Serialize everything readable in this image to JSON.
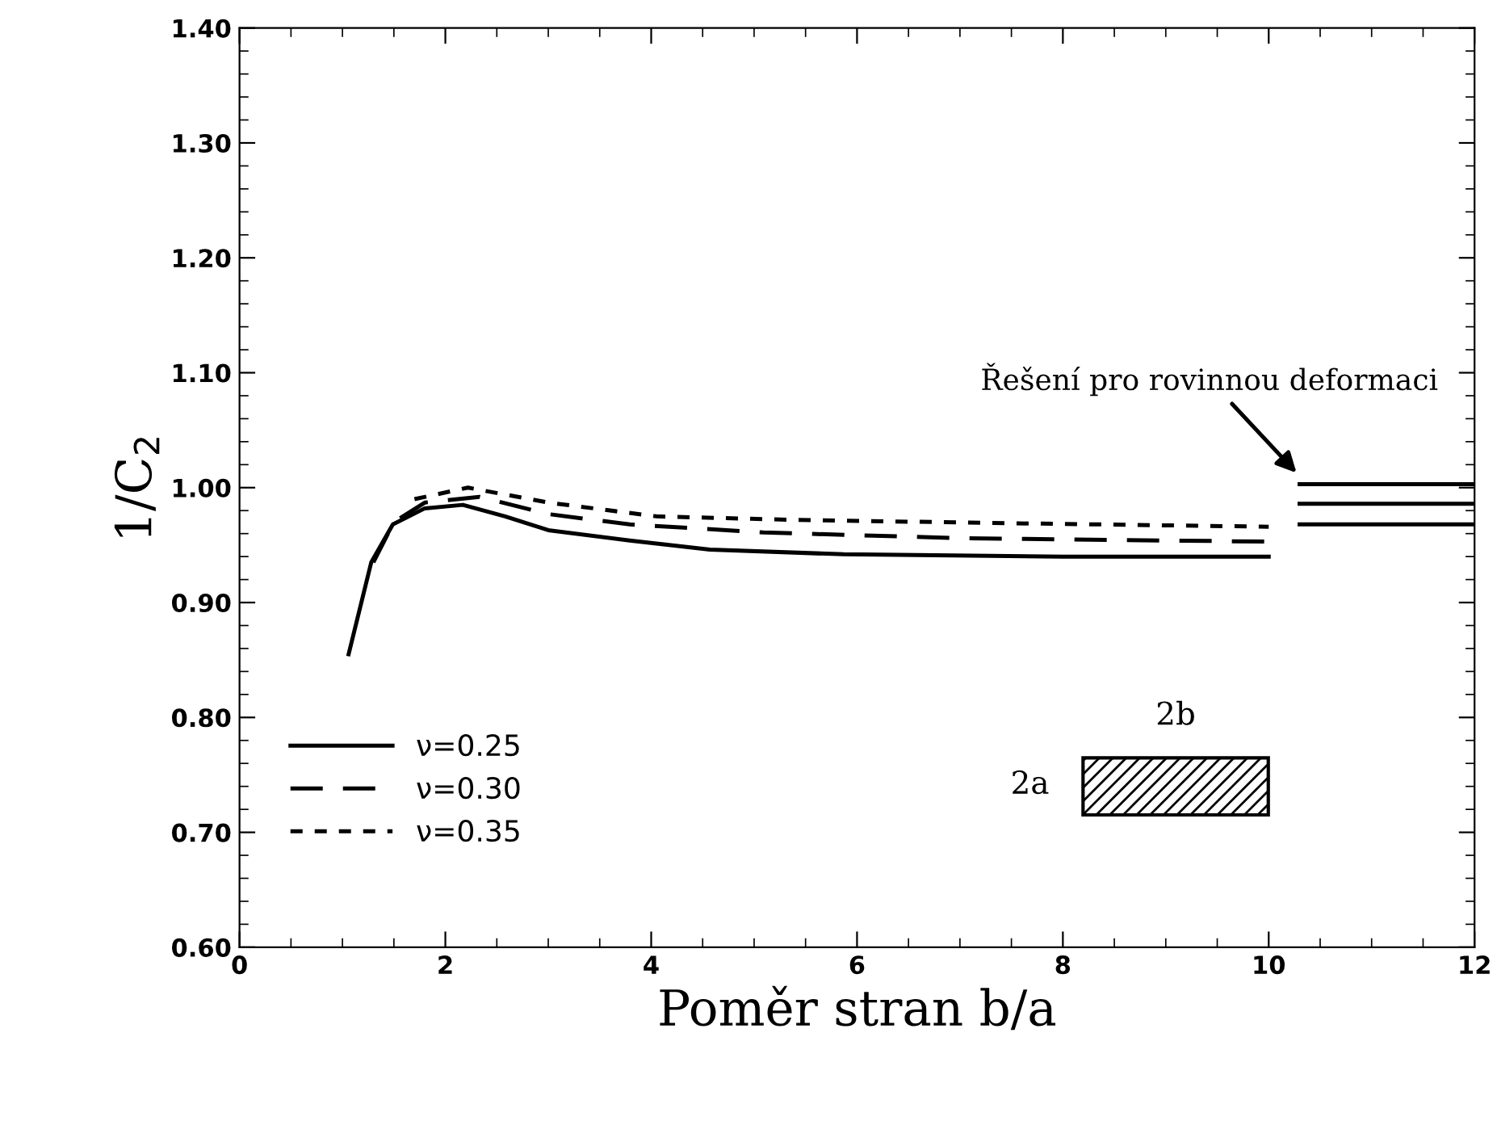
{
  "chart_data": {
    "type": "line",
    "xlabel": "Poměr stran b/a",
    "ylabel": "1/C$_{2}$",
    "xlim": [
      0,
      12
    ],
    "ylim": [
      0.6,
      1.4
    ],
    "xticks": [
      0,
      2,
      4,
      6,
      8,
      10,
      12
    ],
    "yticks": [
      {
        "value": 0.6,
        "label": "0.60"
      },
      {
        "value": 0.7,
        "label": "0.70"
      },
      {
        "value": 0.8,
        "label": "0.80"
      },
      {
        "value": 0.9,
        "label": "0.90"
      },
      {
        "value": 1.0,
        "label": "1.00"
      },
      {
        "value": 1.1,
        "label": "1.10"
      },
      {
        "value": 1.2,
        "label": "1.20"
      },
      {
        "value": 1.3,
        "label": "1.30"
      },
      {
        "value": 1.4,
        "label": "1.40"
      }
    ],
    "grid": false,
    "legend": "bottom left",
    "marker": "none",
    "series": [
      {
        "name": "ν=0.25",
        "color": "#000000",
        "line_style": "solid",
        "x": [
          1.06,
          1.28,
          1.49,
          1.8,
          2.17,
          2.58,
          3.0,
          3.79,
          4.57,
          5.87,
          8.0,
          10.0
        ],
        "values": [
          0.855,
          0.935,
          0.968,
          0.982,
          0.985,
          0.975,
          0.963,
          0.954,
          0.946,
          0.942,
          0.94,
          0.94
        ]
      },
      {
        "name": "ν=0.30",
        "color": "#000000",
        "line_style": "dashed",
        "x": [
          1.3,
          1.5,
          1.8,
          2.33,
          3.0,
          3.79,
          5.09,
          7.0,
          10.0
        ],
        "values": [
          0.935,
          0.97,
          0.987,
          0.992,
          0.977,
          0.968,
          0.961,
          0.956,
          0.953
        ]
      },
      {
        "name": "ν=0.35",
        "color": "#000000",
        "line_style": "dotted",
        "x": [
          1.7,
          2.22,
          3.0,
          4.05,
          5.35,
          7.5,
          10.0
        ],
        "values": [
          0.99,
          1.0,
          0.987,
          0.975,
          0.972,
          0.969,
          0.966
        ]
      },
      {
        "color": "#000000",
        "line_style": "solid",
        "x": [
          10.3,
          12
        ],
        "values": [
          1.003,
          1.003
        ]
      },
      {
        "color": "#000000",
        "line_style": "solid",
        "x": [
          10.3,
          12
        ],
        "values": [
          0.986,
          0.986
        ]
      },
      {
        "color": "#000000",
        "line_style": "solid",
        "x": [
          10.3,
          12
        ],
        "values": [
          0.968,
          0.968
        ]
      }
    ],
    "annotations": [
      {
        "text": "Řešení pro rovinnou deformaci",
        "x": 10.3,
        "y": 1.01
      },
      "2b",
      "2a"
    ]
  }
}
